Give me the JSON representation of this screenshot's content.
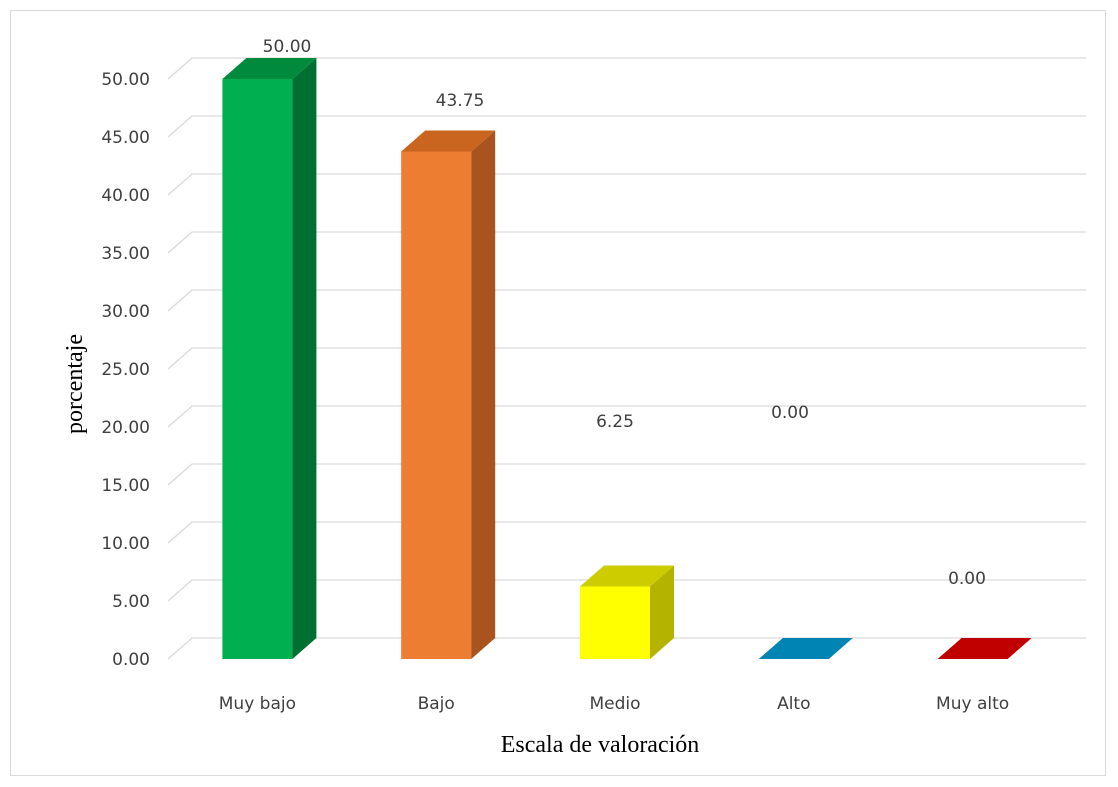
{
  "chart_data": {
    "type": "bar",
    "style": "3d-column",
    "categories": [
      "Muy bajo",
      "Bajo",
      "Medio",
      "Alto",
      "Muy alto"
    ],
    "values": [
      50.0,
      43.75,
      6.25,
      0.0,
      0.0
    ],
    "value_labels": [
      "50.00",
      "43.75",
      "6.25",
      "0.00",
      "0.00"
    ],
    "colors": [
      "#00b050",
      "#ed7d31",
      "#ffff00",
      "#0084b4",
      "#c00000"
    ],
    "side_colors": [
      "#006f32",
      "#a9541e",
      "#b3b300",
      "#005f82",
      "#8a0000"
    ],
    "top_colors": [
      "#008a3e",
      "#c9651f",
      "#cccc00",
      "#0070a0",
      "#a00000"
    ],
    "xlabel": "Escala de valoración",
    "ylabel": "porcentaje",
    "ylim": [
      0,
      50
    ],
    "yticks": [
      "0.00",
      "5.00",
      "10.00",
      "15.00",
      "20.00",
      "25.00",
      "30.00",
      "35.00",
      "40.00",
      "45.00",
      "50.00"
    ],
    "grid": true,
    "legend": "none"
  }
}
